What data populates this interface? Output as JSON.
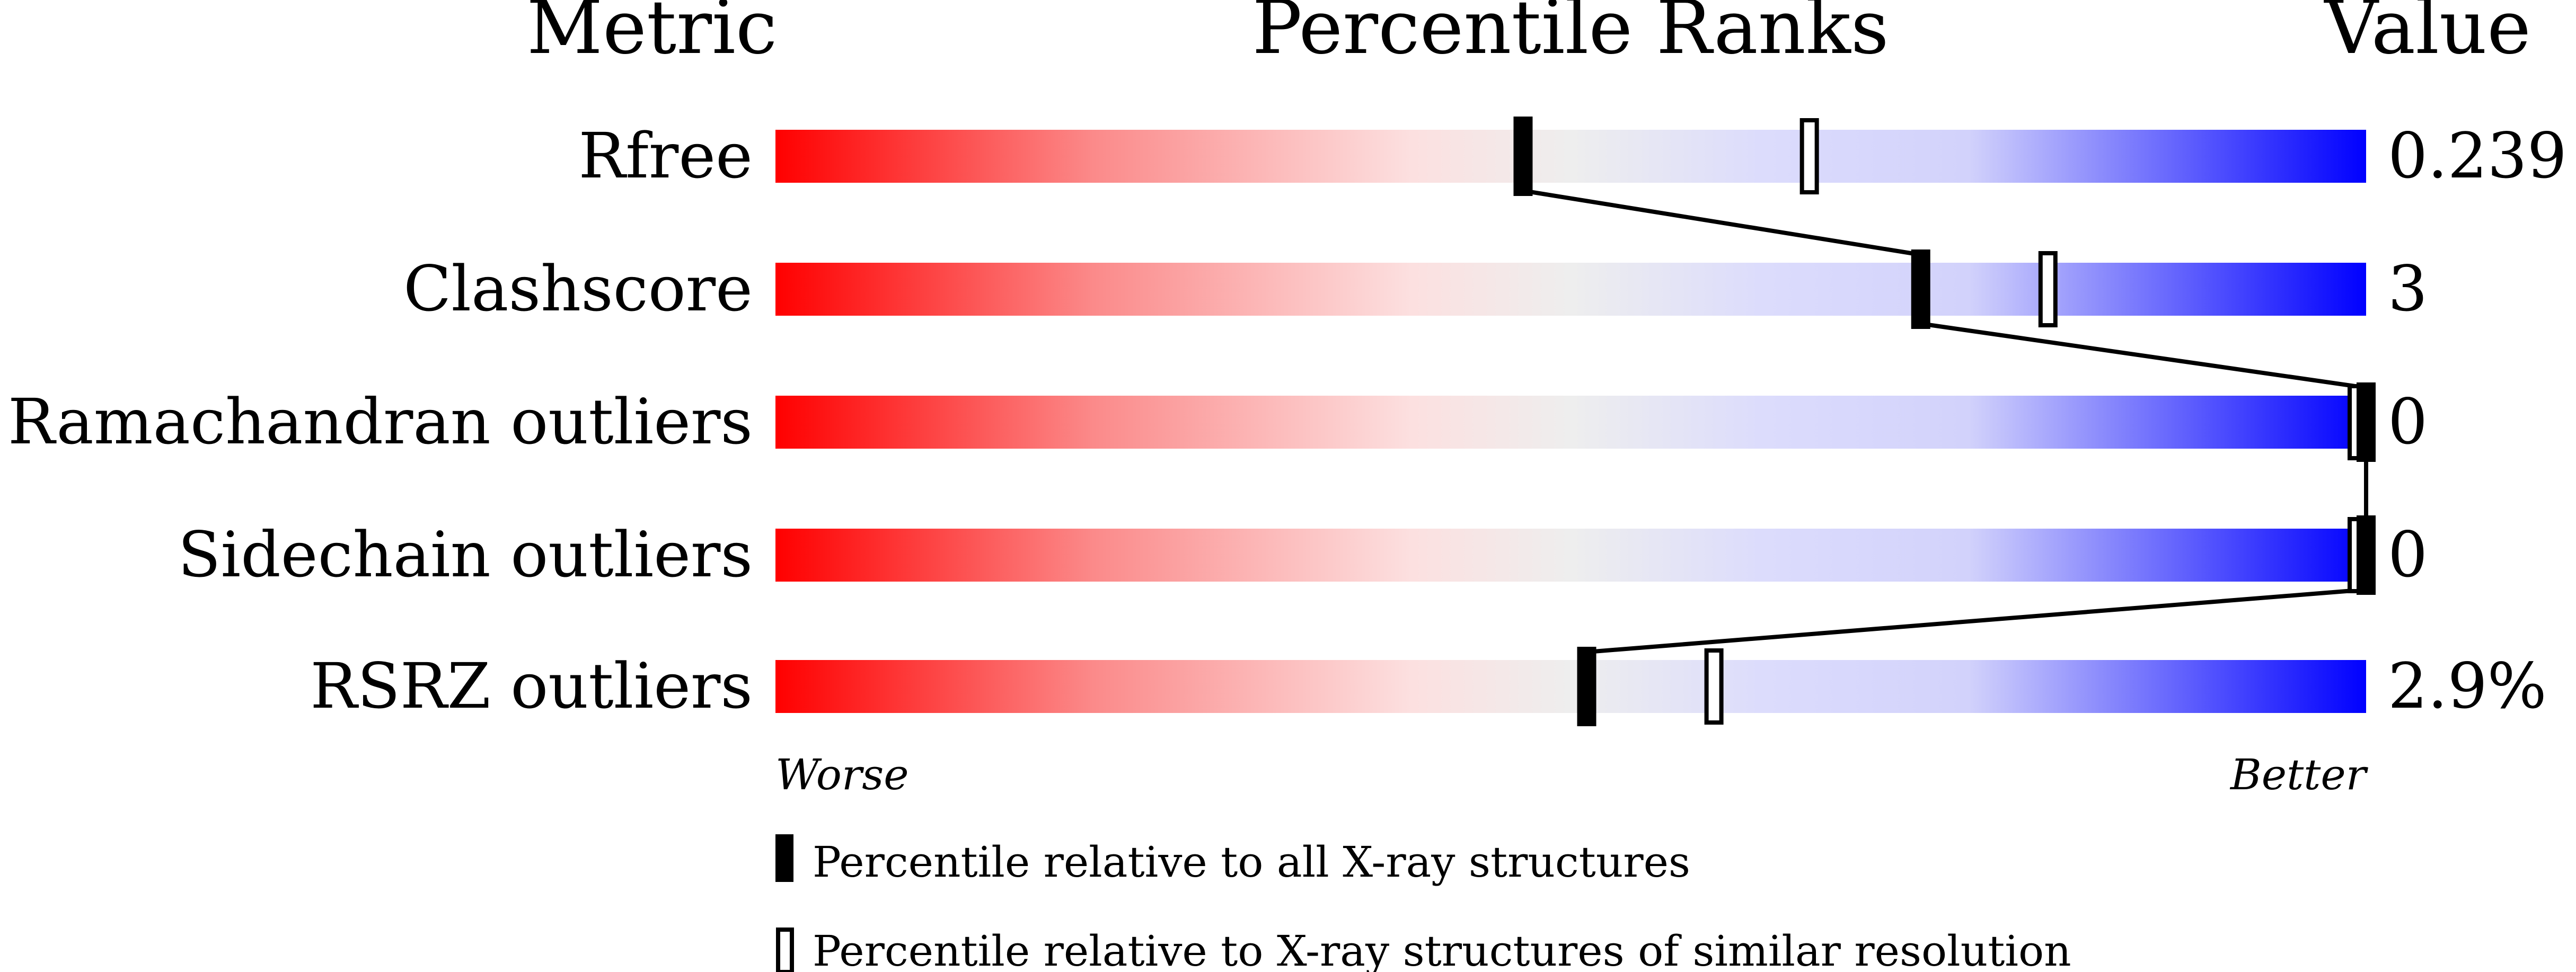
{
  "chart_data": {
    "type": "percentile-slider",
    "headers": {
      "metric": "Metric",
      "ranks": "Percentile Ranks",
      "value": "Value"
    },
    "xlim": [
      0,
      100
    ],
    "metrics": [
      {
        "name": "Rfree",
        "value": "0.239",
        "percentile_all": 47,
        "percentile_similar": 65
      },
      {
        "name": "Clashscore",
        "value": "3",
        "percentile_all": 72,
        "percentile_similar": 80
      },
      {
        "name": "Ramachandran outliers",
        "value": "0",
        "percentile_all": 100,
        "percentile_similar": 100
      },
      {
        "name": "Sidechain outliers",
        "value": "0",
        "percentile_all": 100,
        "percentile_similar": 100
      },
      {
        "name": "RSRZ outliers",
        "value": "2.9%",
        "percentile_all": 51,
        "percentile_similar": 59
      }
    ],
    "axis_labels": {
      "left": "Worse",
      "right": "Better"
    },
    "legend": [
      {
        "marker": "filled",
        "label": "Percentile relative to all X-ray structures"
      },
      {
        "marker": "open",
        "label": "Percentile relative to X-ray structures of similar resolution"
      }
    ],
    "colors": {
      "worse": "#ff0000",
      "middle": "#eeeeee",
      "better": "#0000ff"
    }
  }
}
